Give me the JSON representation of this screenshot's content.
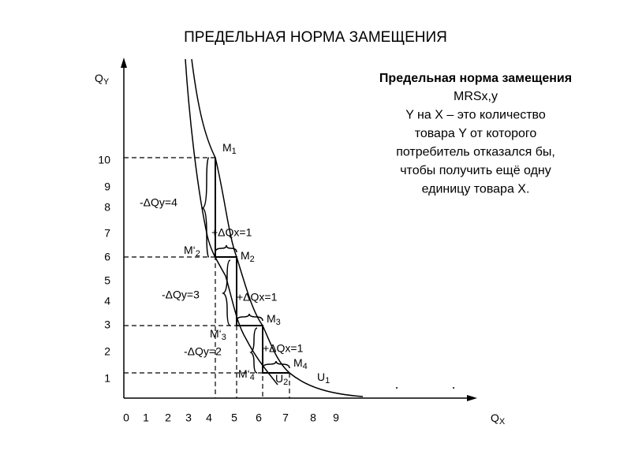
{
  "title": "ПРЕДЕЛЬНАЯ НОРМА ЗАМЕЩЕНИЯ",
  "y_axis": {
    "label": {
      "name": "Q",
      "sub": "Y"
    },
    "ticks": [
      10,
      9,
      8,
      7,
      6,
      5,
      4,
      3,
      2,
      1
    ]
  },
  "x_axis": {
    "label": {
      "name": "Q",
      "sub": "X"
    },
    "ticks": [
      0,
      1,
      2,
      3,
      4,
      5,
      6,
      7,
      8,
      9
    ]
  },
  "points": [
    {
      "name": "M",
      "sub": "1"
    },
    {
      "name": "M‘",
      "sub": "2"
    },
    {
      "name": "M",
      "sub": "2"
    },
    {
      "name": "M‘",
      "sub": "3"
    },
    {
      "name": "M",
      "sub": "3"
    },
    {
      "name": "M‘",
      "sub": "4"
    },
    {
      "name": "M",
      "sub": "4"
    },
    {
      "name": "U",
      "sub": "2"
    },
    {
      "name": "U",
      "sub": "1"
    }
  ],
  "annotations": [
    "-ΔQy=4",
    "+ΔQx=1",
    "-ΔQy=3",
    "+ΔQx=1",
    "-ΔQy=2",
    "+ΔQx=1"
  ],
  "info": {
    "heading": "Предельная норма замещения",
    "lines": [
      "MRSx,y",
      "Y на X – это количество",
      "товара Y от которого",
      "потребитель отказался бы,",
      "чтобы получить ещё одну",
      "единицу товара X."
    ]
  }
}
